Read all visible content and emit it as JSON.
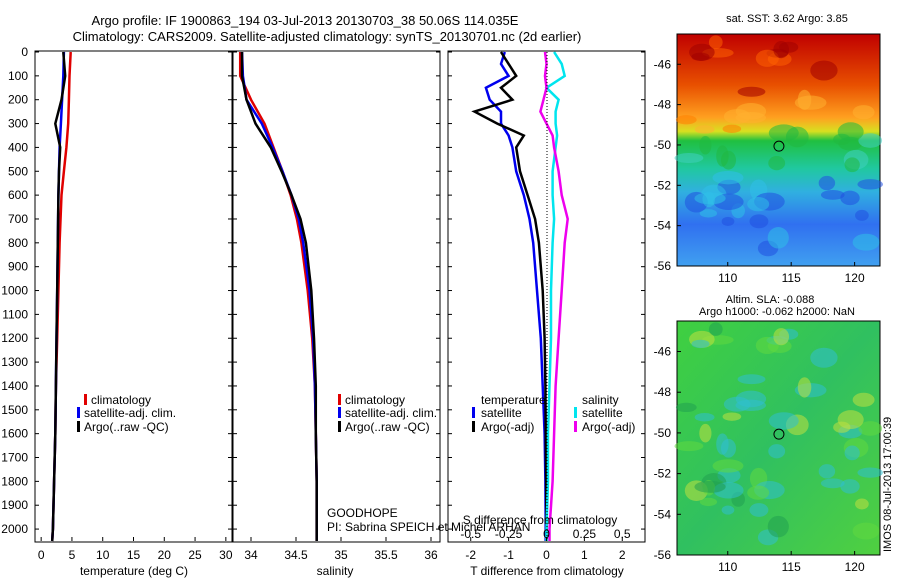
{
  "header": {
    "title_line1": "Argo profile: IF 1900863_194 03-Jul-2013 20130703_38 50.06S 114.035E",
    "title_line2": "Climatology: CARS2009. Satellite-adjusted climatology: synTS_20130701.nc (2d earlier)"
  },
  "depth_ticks": [
    "0",
    "100",
    "200",
    "300",
    "400",
    "500",
    "600",
    "700",
    "800",
    "900",
    "1000",
    "1100",
    "1200",
    "1300",
    "1400",
    "1500",
    "1600",
    "1700",
    "1800",
    "1900",
    "2000"
  ],
  "colors": {
    "climatology": "#e00000",
    "satellite": "#0000ee",
    "argo": "#000000",
    "sat_sal": "#00e5ee",
    "argo_sal": "#ee00ee"
  },
  "chart_data": [
    {
      "type": "line",
      "panel": "temperature",
      "xlabel": "temperature (deg C)",
      "ylabel": "depth",
      "xlim": [
        -1,
        31
      ],
      "ylim": [
        2050,
        0
      ],
      "xticks": [
        "0",
        "5",
        "10",
        "15",
        "20",
        "25",
        "30"
      ],
      "depth": [
        0,
        100,
        200,
        300,
        400,
        500,
        600,
        800,
        1000,
        1200,
        1400,
        1600,
        1800,
        2000,
        2050
      ],
      "series": [
        {
          "name": "climatology",
          "color": "#e00000",
          "values": [
            4.8,
            4.6,
            4.5,
            4.4,
            4.1,
            3.7,
            3.3,
            3.0,
            2.8,
            2.6,
            2.4,
            2.3,
            2.1,
            1.9,
            1.8
          ]
        },
        {
          "name": "satellite-adj. clim.",
          "color": "#0000ee",
          "values": [
            3.7,
            3.6,
            3.4,
            3.2,
            3.0,
            2.9,
            2.8,
            2.7,
            2.6,
            2.5,
            2.4,
            2.3,
            2.1,
            1.9,
            1.8
          ]
        },
        {
          "name": "Argo(..raw -QC)",
          "color": "#000000",
          "values": [
            3.6,
            3.9,
            3.3,
            2.3,
            3.1,
            2.9,
            2.8,
            2.7,
            2.6,
            2.5,
            2.4,
            2.3,
            2.1,
            1.9,
            1.8
          ]
        }
      ],
      "legend": [
        "climatology",
        "satellite-adj. clim.",
        "Argo(..raw -QC)"
      ]
    },
    {
      "type": "line",
      "panel": "salinity",
      "xlabel": "salinity",
      "xlim": [
        33.8,
        36.1
      ],
      "ylim": [
        2050,
        0
      ],
      "xticks": [
        "34",
        "34.5",
        "35",
        "35.5",
        "36"
      ],
      "depth": [
        0,
        100,
        200,
        300,
        400,
        500,
        600,
        700,
        800,
        1000,
        1200,
        1400,
        1600,
        1800,
        2000,
        2050
      ],
      "series": [
        {
          "name": "climatology",
          "color": "#e00000",
          "values": [
            33.88,
            33.88,
            34.0,
            34.15,
            34.25,
            34.35,
            34.44,
            34.51,
            34.56,
            34.63,
            34.68,
            34.71,
            34.72,
            34.73,
            34.73,
            34.73
          ]
        },
        {
          "name": "satellite-adj. clim.",
          "color": "#0000ee",
          "values": [
            33.9,
            33.91,
            33.95,
            34.12,
            34.24,
            34.35,
            34.45,
            34.53,
            34.58,
            34.65,
            34.69,
            34.71,
            34.72,
            34.73,
            34.73,
            34.73
          ]
        },
        {
          "name": "Argo(..raw -QC)",
          "color": "#000000",
          "values": [
            33.9,
            33.9,
            33.95,
            34.05,
            34.22,
            34.34,
            34.45,
            34.55,
            34.61,
            34.67,
            34.7,
            34.72,
            34.72,
            34.73,
            34.73,
            34.73
          ]
        }
      ],
      "legend": [
        "climatology",
        "satellite-adj. clim.",
        "Argo(..raw -QC)"
      ],
      "annotation_line1": "GOODHOPE",
      "annotation_line2": "PI: Sabrina SPEICH et Michel ARHAN"
    },
    {
      "type": "line",
      "panel": "difference",
      "xlabel": "T difference from climatology",
      "xlabel_top": "S difference from climatology",
      "xlim": [
        -2.6,
        2.6
      ],
      "ylim": [
        2050,
        0
      ],
      "xticks": [
        "-2",
        "-1",
        "0",
        "1",
        "2"
      ],
      "xticks_s": [
        "-0.5",
        "-0.25",
        "0",
        "0.25",
        "0.5"
      ],
      "legend_temperature_title": "temperature",
      "legend_salinity_title": "salinity",
      "depth": [
        0,
        50,
        100,
        150,
        200,
        250,
        300,
        350,
        400,
        500,
        600,
        700,
        800,
        1000,
        1200,
        1400,
        1600,
        1800,
        2000,
        2050
      ],
      "series": [
        {
          "name": "T satellite",
          "color": "#0000ee",
          "values": [
            -1.1,
            -1.2,
            -1.0,
            -1.6,
            -1.5,
            -1.2,
            -1.2,
            -1.0,
            -0.9,
            -0.8,
            -0.6,
            -0.45,
            -0.35,
            -0.25,
            -0.15,
            -0.1,
            -0.05,
            -0.03,
            -0.02,
            -0.02
          ]
        },
        {
          "name": "T Argo(-adj)",
          "color": "#000000",
          "values": [
            -1.2,
            -1.0,
            -0.8,
            -1.2,
            -0.9,
            -1.9,
            -1.3,
            -0.6,
            -0.8,
            -0.7,
            -0.5,
            -0.3,
            -0.2,
            -0.1,
            -0.05,
            -0.03,
            -0.02,
            -0.01,
            0.0,
            0.0
          ]
        },
        {
          "name": "S satellite",
          "color": "#00e5ee",
          "values": [
            0.05,
            0.1,
            0.12,
            0.0,
            0.08,
            0.06,
            0.06,
            0.07,
            0.06,
            0.04,
            0.04,
            0.05,
            0.04,
            0.03,
            0.03,
            0.02,
            0.01,
            0.01,
            0.0,
            0.0
          ]
        },
        {
          "name": "S Argo(-adj)",
          "color": "#ee00ee",
          "values": [
            -0.01,
            0.0,
            -0.01,
            0.0,
            -0.02,
            -0.04,
            0.0,
            0.04,
            0.05,
            0.08,
            0.1,
            0.14,
            0.12,
            0.1,
            0.08,
            0.06,
            0.05,
            0.04,
            0.02,
            0.02
          ]
        }
      ],
      "legend": [
        "satellite",
        "Argo(-adj)",
        "satellite",
        "Argo(-adj)"
      ]
    },
    {
      "type": "heatmap",
      "panel": "sst_map",
      "title": "sat. SST: 3.62 Argo: 3.85",
      "xlim": [
        106,
        122
      ],
      "ylim": [
        -56,
        -44.5
      ],
      "xticks": [
        "110",
        "115",
        "120"
      ],
      "yticks": [
        "-46",
        "-48",
        "-50",
        "-52",
        "-54",
        "-56"
      ],
      "marker": {
        "lon": 114.035,
        "lat": -50.06
      }
    },
    {
      "type": "heatmap",
      "panel": "sla_map",
      "title_line1": "Altim. SLA: -0.088",
      "title_line2": "Argo h1000: -0.062 h2000: NaN",
      "xlim": [
        106,
        122
      ],
      "ylim": [
        -56,
        -44.5
      ],
      "xticks": [
        "110",
        "115",
        "120"
      ],
      "yticks": [
        "-46",
        "-48",
        "-50",
        "-52",
        "-54",
        "-56"
      ],
      "marker": {
        "lon": 114.035,
        "lat": -50.06
      },
      "side_label": "IMOS 08-Jul-2013 17:00:39"
    }
  ]
}
